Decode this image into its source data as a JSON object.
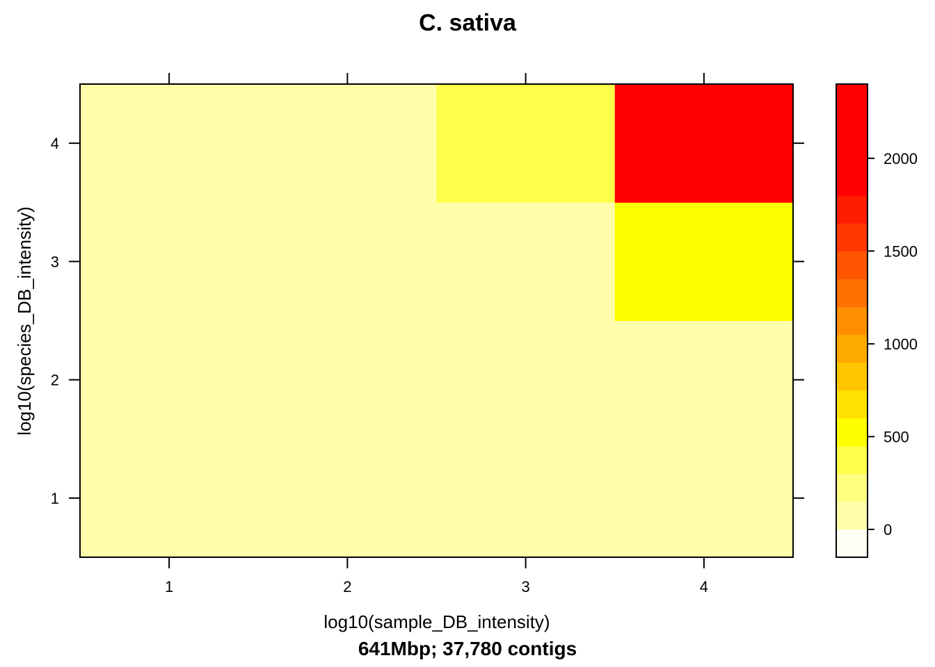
{
  "chart_data": {
    "type": "heatmap",
    "title": "C. sativa",
    "xlabel": "log10(sample_DB_intensity)",
    "ylabel": "log10(species_DB_intensity)",
    "subtitle": "641Mbp; 37,780 contigs",
    "x": [
      1,
      2,
      3,
      4
    ],
    "y": [
      1,
      2,
      3,
      4
    ],
    "xlim": [
      0.5,
      4.5
    ],
    "ylim": [
      0.5,
      4.5
    ],
    "x_ticks": [
      "1",
      "2",
      "3",
      "4"
    ],
    "y_ticks": [
      "1",
      "2",
      "3",
      "4"
    ],
    "values": [
      [
        0,
        0,
        0,
        120
      ],
      [
        0,
        0,
        100,
        120
      ],
      [
        0,
        110,
        110,
        560
      ],
      [
        0,
        120,
        400,
        2350
      ]
    ],
    "colorbar": {
      "breaks": [
        -150,
        0,
        150,
        300,
        450,
        600,
        750,
        900,
        1050,
        1200,
        1350,
        1500,
        1650,
        1800,
        1950,
        2100,
        2250,
        2400
      ],
      "colors": [
        "#FFFFF6",
        "#FFFFAB",
        "#FFFF80",
        "#FFFF49",
        "#FFFF00",
        "#FFE300",
        "#FFC600",
        "#FFAA00",
        "#FF8E00",
        "#FF7100",
        "#FF5500",
        "#FF3900",
        "#FF1C00",
        "#FF0000",
        "#FF0000",
        "#FF0000",
        "#FF0000"
      ],
      "ticks": [
        "0",
        "500",
        "1000",
        "1500",
        "2000"
      ],
      "tick_values": [
        0,
        500,
        1000,
        1500,
        2000
      ]
    }
  }
}
